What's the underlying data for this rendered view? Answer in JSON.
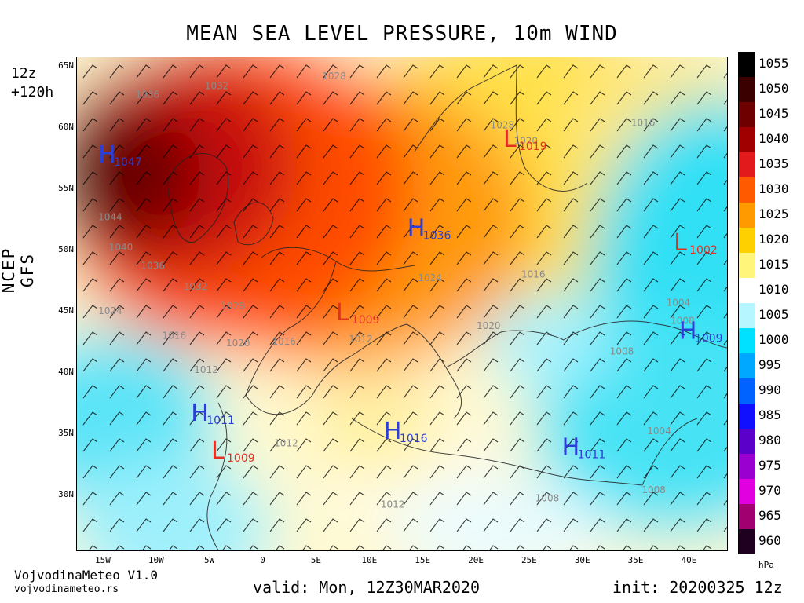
{
  "title": "MEAN SEA LEVEL PRESSURE, 10m WIND",
  "run_hour": "12z",
  "lead": "+120h",
  "model": "NCEP GFS",
  "brand_name": "VojvodinaMeteo V1.0",
  "brand_url": "vojvodinameteo.rs",
  "valid": "valid: Mon, 12Z30MAR2020",
  "init": "init: 20200325 12z",
  "unit": "hPa",
  "lat_labels": [
    "65N",
    "60N",
    "55N",
    "50N",
    "45N",
    "40N",
    "35N",
    "30N"
  ],
  "lon_labels": [
    "15W",
    "10W",
    "5W",
    "0",
    "5E",
    "10E",
    "15E",
    "20E",
    "25E",
    "30E",
    "35E",
    "40E"
  ],
  "colorbar": {
    "labels": [
      "1055",
      "1050",
      "1045",
      "1040",
      "1035",
      "1030",
      "1025",
      "1020",
      "1015",
      "1010",
      "1005",
      "1000",
      "995",
      "990",
      "985",
      "980",
      "975",
      "970",
      "965",
      "960"
    ],
    "colors": [
      "#000000",
      "#3a0000",
      "#6e0000",
      "#a00000",
      "#e31a1c",
      "#ff5a00",
      "#ff9a00",
      "#ffd000",
      "#fff57a",
      "#ffffff",
      "#b6f7ff",
      "#00e0ff",
      "#00a8ff",
      "#0062ff",
      "#1010ff",
      "#5a00c8",
      "#9a00d0",
      "#e000e0",
      "#a00070",
      "#200020"
    ]
  },
  "systems": [
    {
      "type": "H",
      "value": "1047",
      "lon": -15.5,
      "lat": 57.2,
      "color": "#2b3fd6"
    },
    {
      "type": "H",
      "value": "1036",
      "lon": 13.5,
      "lat": 51.2,
      "color": "#2b3fd6"
    },
    {
      "type": "H",
      "value": "1009",
      "lon": 39.0,
      "lat": 42.8,
      "color": "#2b3fd6"
    },
    {
      "type": "H",
      "value": "1011",
      "lon": -6.8,
      "lat": 36.1,
      "color": "#2b3fd6"
    },
    {
      "type": "H",
      "value": "1016",
      "lon": 11.3,
      "lat": 34.6,
      "color": "#2b3fd6"
    },
    {
      "type": "H",
      "value": "1011",
      "lon": 28.0,
      "lat": 33.3,
      "color": "#2b3fd6"
    },
    {
      "type": "L",
      "value": "1019",
      "lon": 22.5,
      "lat": 58.5,
      "color": "#e03020"
    },
    {
      "type": "L",
      "value": "1002",
      "lon": 38.5,
      "lat": 50.0,
      "color": "#e03020"
    },
    {
      "type": "L",
      "value": "1009",
      "lon": 6.8,
      "lat": 44.3,
      "color": "#e03020"
    },
    {
      "type": "L",
      "value": "1009",
      "lon": -4.9,
      "lat": 33.0,
      "color": "#e03020"
    }
  ],
  "isobar_labels": [
    {
      "text": "1036",
      "lon": -12.0,
      "lat": 62.5
    },
    {
      "text": "1032",
      "lon": -5.5,
      "lat": 63.2
    },
    {
      "text": "1028",
      "lon": 5.5,
      "lat": 64.0
    },
    {
      "text": "1044",
      "lon": -15.5,
      "lat": 52.5
    },
    {
      "text": "1040",
      "lon": -14.5,
      "lat": 50.0
    },
    {
      "text": "1036",
      "lon": -11.5,
      "lat": 48.5
    },
    {
      "text": "1032",
      "lon": -7.5,
      "lat": 46.8
    },
    {
      "text": "1028",
      "lon": -4.0,
      "lat": 45.2
    },
    {
      "text": "1024",
      "lon": -15.5,
      "lat": 44.8
    },
    {
      "text": "1016",
      "lon": -9.5,
      "lat": 42.8
    },
    {
      "text": "1020",
      "lon": -3.5,
      "lat": 42.2
    },
    {
      "text": "1016",
      "lon": 0.8,
      "lat": 42.3
    },
    {
      "text": "1012",
      "lon": -6.5,
      "lat": 40.0
    },
    {
      "text": "1024",
      "lon": 14.5,
      "lat": 47.5
    },
    {
      "text": "1020",
      "lon": 20.0,
      "lat": 43.6
    },
    {
      "text": "1016",
      "lon": 24.2,
      "lat": 47.8
    },
    {
      "text": "1012",
      "lon": 8.0,
      "lat": 42.5
    },
    {
      "text": "1028",
      "lon": 21.3,
      "lat": 60.0
    },
    {
      "text": "1020",
      "lon": 23.5,
      "lat": 58.7
    },
    {
      "text": "1016",
      "lon": 34.5,
      "lat": 60.2
    },
    {
      "text": "1004",
      "lon": 37.8,
      "lat": 45.5
    },
    {
      "text": "1008",
      "lon": 38.2,
      "lat": 44.0
    },
    {
      "text": "1008",
      "lon": 32.5,
      "lat": 41.5
    },
    {
      "text": "1004",
      "lon": 36.0,
      "lat": 35.0
    },
    {
      "text": "1008",
      "lon": 35.5,
      "lat": 30.2
    },
    {
      "text": "1008",
      "lon": 25.5,
      "lat": 29.5
    },
    {
      "text": "1012",
      "lon": 1.0,
      "lat": 34.0
    },
    {
      "text": "1012",
      "lon": 11.0,
      "lat": 29.0
    }
  ]
}
